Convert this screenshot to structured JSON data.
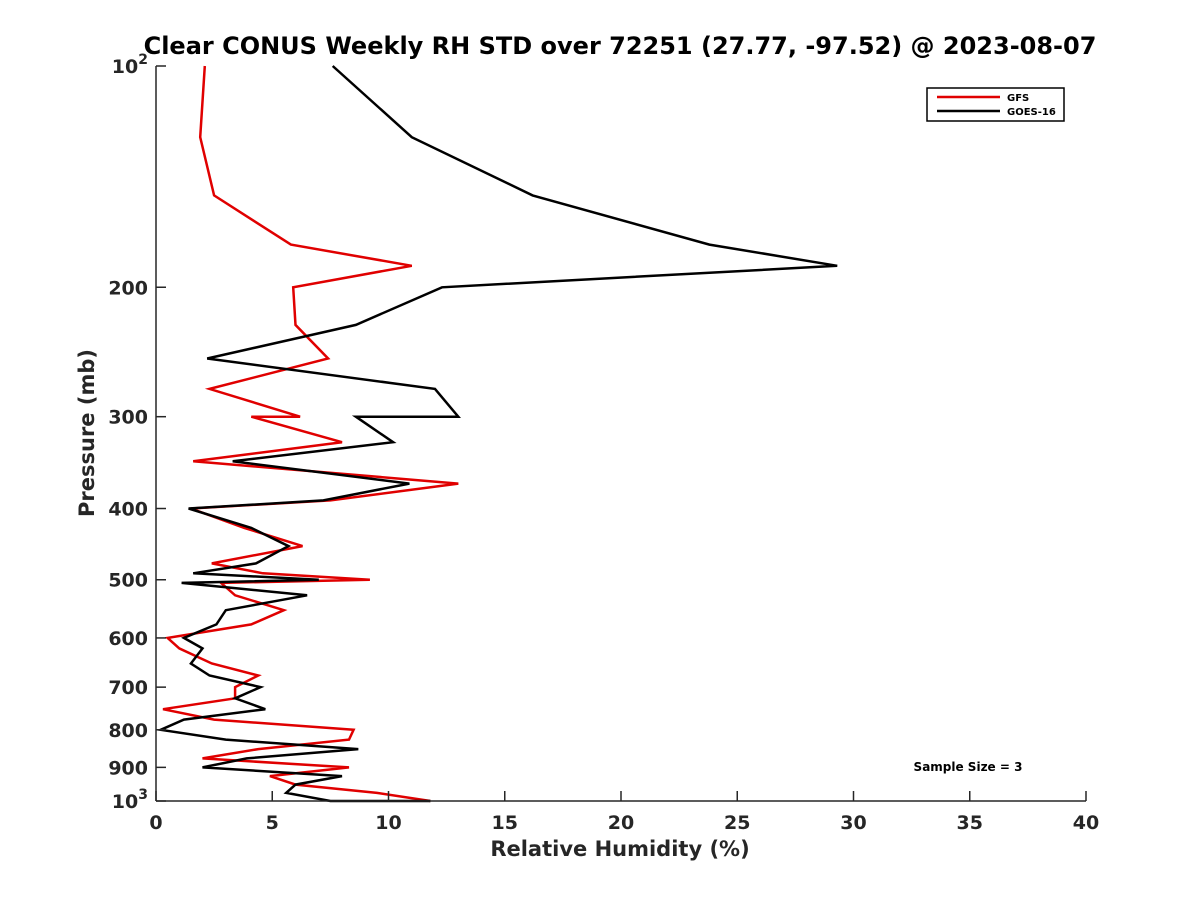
{
  "chart_data": {
    "type": "line",
    "title": "Clear CONUS Weekly RH STD over 72251 (27.77, -97.52) @ 2023-08-07",
    "xlabel": "Relative Humidity (%)",
    "ylabel": "Pressure (mb)",
    "xlim": [
      0,
      40
    ],
    "ylim": [
      100,
      1000
    ],
    "y_scale": "log",
    "y_reversed": true,
    "grid": false,
    "legend_position": "top-right",
    "x_ticks": [
      0,
      5,
      10,
      15,
      20,
      25,
      30,
      35,
      40
    ],
    "x_tick_labels": [
      "0",
      "5",
      "10",
      "15",
      "20",
      "25",
      "30",
      "35",
      "40"
    ],
    "y_ticks": [
      {
        "value": 100,
        "base": "10",
        "exp": "2"
      },
      {
        "value": 200,
        "label": "200"
      },
      {
        "value": 300,
        "label": "300"
      },
      {
        "value": 400,
        "label": "400"
      },
      {
        "value": 500,
        "label": "500"
      },
      {
        "value": 600,
        "label": "600"
      },
      {
        "value": 700,
        "label": "700"
      },
      {
        "value": 800,
        "label": "800"
      },
      {
        "value": 900,
        "label": "900"
      },
      {
        "value": 1000,
        "base": "10",
        "exp": "3"
      }
    ],
    "annotation": "Sample Size = 3",
    "series": [
      {
        "name": "GFS",
        "color": "#e00000",
        "points": [
          [
            2.1,
            100
          ],
          [
            1.9,
            125
          ],
          [
            2.5,
            150
          ],
          [
            5.8,
            175
          ],
          [
            11.0,
            187
          ],
          [
            5.9,
            200
          ],
          [
            6.0,
            225
          ],
          [
            7.4,
            250
          ],
          [
            2.3,
            275
          ],
          [
            6.2,
            300
          ],
          [
            4.1,
            300
          ],
          [
            8.0,
            325
          ],
          [
            1.6,
            345
          ],
          [
            13.0,
            370
          ],
          [
            7.5,
            390
          ],
          [
            1.5,
            400
          ],
          [
            3.8,
            425
          ],
          [
            6.3,
            450
          ],
          [
            2.4,
            475
          ],
          [
            4.6,
            490
          ],
          [
            9.2,
            500
          ],
          [
            2.8,
            505
          ],
          [
            3.4,
            525
          ],
          [
            5.5,
            550
          ],
          [
            4.1,
            575
          ],
          [
            0.5,
            600
          ],
          [
            1.0,
            620
          ],
          [
            2.4,
            650
          ],
          [
            4.4,
            675
          ],
          [
            3.4,
            700
          ],
          [
            3.4,
            725
          ],
          [
            0.3,
            750
          ],
          [
            2.5,
            775
          ],
          [
            8.5,
            800
          ],
          [
            8.3,
            825
          ],
          [
            4.4,
            850
          ],
          [
            2.0,
            875
          ],
          [
            8.3,
            900
          ],
          [
            4.9,
            925
          ],
          [
            6.0,
            950
          ],
          [
            9.5,
            975
          ],
          [
            11.8,
            1000
          ]
        ]
      },
      {
        "name": "GOES-16",
        "color": "#000000",
        "points": [
          [
            7.6,
            100
          ],
          [
            11.0,
            125
          ],
          [
            16.2,
            150
          ],
          [
            23.8,
            175
          ],
          [
            29.3,
            187
          ],
          [
            12.3,
            200
          ],
          [
            8.6,
            225
          ],
          [
            2.2,
            250
          ],
          [
            12.0,
            275
          ],
          [
            13.0,
            300
          ],
          [
            8.6,
            300
          ],
          [
            10.2,
            325
          ],
          [
            3.3,
            345
          ],
          [
            10.9,
            370
          ],
          [
            7.2,
            390
          ],
          [
            1.4,
            400
          ],
          [
            4.1,
            425
          ],
          [
            5.7,
            450
          ],
          [
            4.3,
            475
          ],
          [
            1.6,
            490
          ],
          [
            7.0,
            500
          ],
          [
            1.1,
            505
          ],
          [
            6.5,
            525
          ],
          [
            3.0,
            550
          ],
          [
            2.6,
            575
          ],
          [
            1.2,
            600
          ],
          [
            2.0,
            620
          ],
          [
            1.5,
            650
          ],
          [
            2.3,
            675
          ],
          [
            4.5,
            700
          ],
          [
            3.4,
            725
          ],
          [
            4.7,
            750
          ],
          [
            1.2,
            775
          ],
          [
            0.2,
            800
          ],
          [
            3.0,
            825
          ],
          [
            8.7,
            850
          ],
          [
            3.9,
            875
          ],
          [
            2.0,
            900
          ],
          [
            8.0,
            925
          ],
          [
            6.0,
            950
          ],
          [
            5.6,
            975
          ],
          [
            7.5,
            1000
          ],
          [
            11.8,
            1000
          ]
        ]
      }
    ]
  }
}
